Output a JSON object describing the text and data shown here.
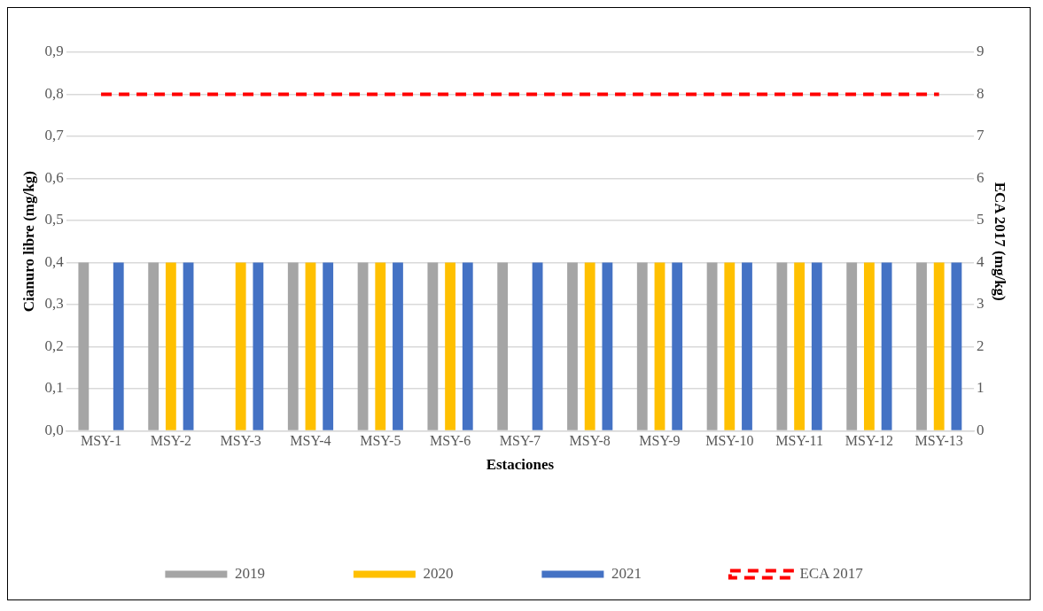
{
  "chart_data": {
    "type": "bar",
    "xlabel": "Estaciones",
    "ylabel": "Cianuro libre (mg/kg)",
    "y2label": "ECA 2017 (mg/kg)",
    "categories": [
      "MSY-1",
      "MSY-2",
      "MSY-3",
      "MSY-4",
      "MSY-5",
      "MSY-6",
      "MSY-7",
      "MSY-8",
      "MSY-9",
      "MSY-10",
      "MSY-11",
      "MSY-12",
      "MSY-13"
    ],
    "series": [
      {
        "name": "2019",
        "color": "#a5a5a5",
        "values": [
          0.4,
          0.4,
          null,
          0.4,
          0.4,
          0.4,
          0.4,
          0.4,
          0.4,
          0.4,
          0.4,
          0.4,
          0.4
        ]
      },
      {
        "name": "2020",
        "color": "#ffc000",
        "values": [
          null,
          0.4,
          0.4,
          0.4,
          0.4,
          0.4,
          null,
          0.4,
          0.4,
          0.4,
          0.4,
          0.4,
          0.4
        ]
      },
      {
        "name": "2021",
        "color": "#4472c4",
        "values": [
          0.4,
          0.4,
          0.4,
          0.4,
          0.4,
          0.4,
          0.4,
          0.4,
          0.4,
          0.4,
          0.4,
          0.4,
          0.4
        ]
      },
      {
        "name": "ECA 2017",
        "type": "line",
        "axis": "y2",
        "color": "#ff0000",
        "line_style": "dashed",
        "marker": "none",
        "values": [
          8,
          8,
          8,
          8,
          8,
          8,
          8,
          8,
          8,
          8,
          8,
          8,
          8
        ]
      }
    ],
    "ylim": [
      0,
      0.9
    ],
    "yticks": [
      {
        "value": 0,
        "label": "0,0"
      },
      {
        "value": 0.1,
        "label": "0,1"
      },
      {
        "value": 0.2,
        "label": "0,2"
      },
      {
        "value": 0.3,
        "label": "0,3"
      },
      {
        "value": 0.4,
        "label": "0,4"
      },
      {
        "value": 0.5,
        "label": "0,5"
      },
      {
        "value": 0.6,
        "label": "0,6"
      },
      {
        "value": 0.7,
        "label": "0,7"
      },
      {
        "value": 0.8,
        "label": "0,8"
      },
      {
        "value": 0.9,
        "label": "0,9"
      }
    ],
    "y2lim": [
      0,
      9
    ],
    "y2ticks": [
      0,
      1,
      2,
      3,
      4,
      5,
      6,
      7,
      8,
      9
    ],
    "grid": "y",
    "legend": "bottom"
  }
}
